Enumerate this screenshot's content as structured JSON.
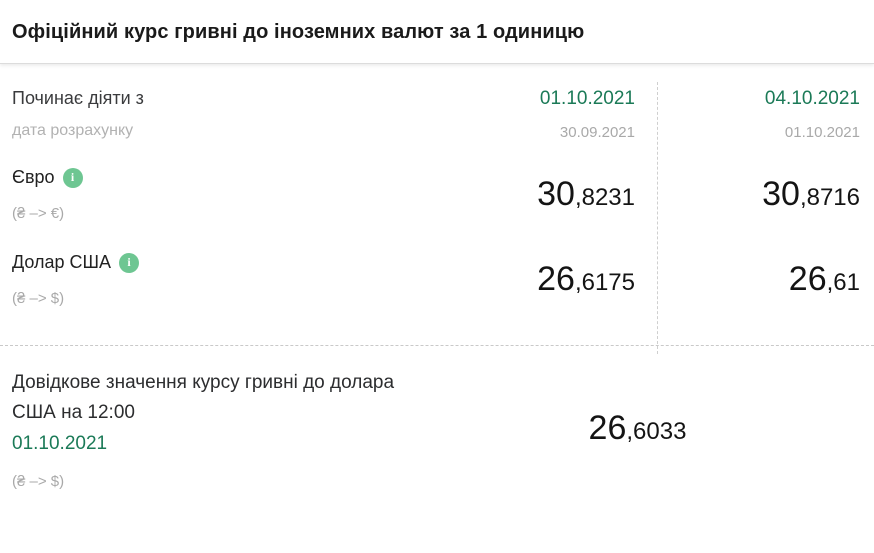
{
  "title": "Офіційний курс гривні до іноземних валют за 1 одиницю",
  "colors": {
    "accent_green": "#1b7a57",
    "info_icon_green": "#6ec692",
    "muted_gray": "#a9a9a9",
    "text_dark": "#1a1a1a"
  },
  "table": {
    "header": {
      "label": "Починає діяти з",
      "sublabel": "дата розрахунку",
      "col1": {
        "effective_date": "01.10.2021",
        "calc_date": "30.09.2021"
      },
      "col2": {
        "effective_date": "04.10.2021",
        "calc_date": "01.10.2021"
      }
    },
    "rows": [
      {
        "currency": "Євро",
        "pair": "(₴ –> €)",
        "info_icon": "i",
        "col1": {
          "int": "30",
          "frac": ",8231"
        },
        "col2": {
          "int": "30",
          "frac": ",8716"
        }
      },
      {
        "currency": "Долар США",
        "pair": "(₴ –> $)",
        "info_icon": "i",
        "col1": {
          "int": "26",
          "frac": ",6175"
        },
        "col2": {
          "int": "26",
          "frac": ",61"
        }
      }
    ]
  },
  "reference": {
    "label": "Довідкове значення курсу гривні до долара США на 12:00",
    "date": "01.10.2021",
    "pair": "(₴ –> $)",
    "value": {
      "int": "26",
      "frac": ",6033"
    }
  }
}
